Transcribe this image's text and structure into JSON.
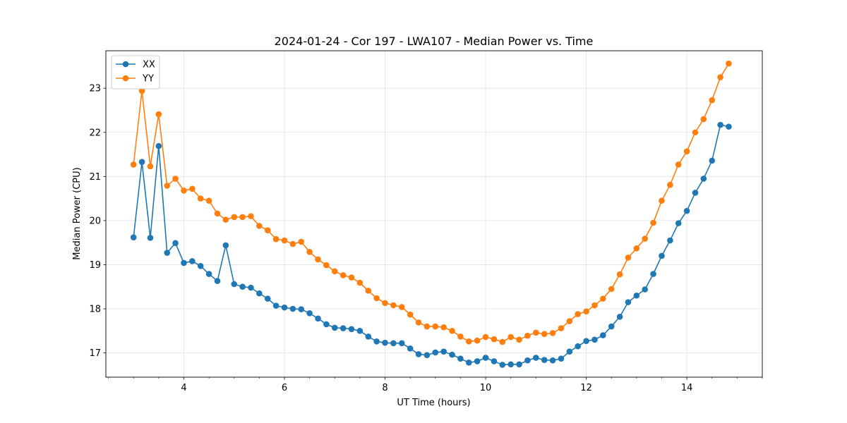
{
  "chart_data": {
    "type": "line",
    "title": "2024-01-24 - Cor 197 - LWA107 - Median Power vs. Time",
    "xlabel": "UT Time (hours)",
    "ylabel": "Median Power (CPU)",
    "xlim": [
      2.45,
      15.5
    ],
    "ylim": [
      16.45,
      23.85
    ],
    "xticks": [
      4,
      6,
      8,
      10,
      12,
      14
    ],
    "yticks": [
      17,
      18,
      19,
      20,
      21,
      22,
      23
    ],
    "grid": true,
    "legend_position": "top-left",
    "x": [
      3.0,
      3.167,
      3.333,
      3.5,
      3.667,
      3.833,
      4.0,
      4.167,
      4.333,
      4.5,
      4.667,
      4.833,
      5.0,
      5.167,
      5.333,
      5.5,
      5.667,
      5.833,
      6.0,
      6.167,
      6.333,
      6.5,
      6.667,
      6.833,
      7.0,
      7.167,
      7.333,
      7.5,
      7.667,
      7.833,
      8.0,
      8.167,
      8.333,
      8.5,
      8.667,
      8.833,
      9.0,
      9.167,
      9.333,
      9.5,
      9.667,
      9.833,
      10.0,
      10.167,
      10.333,
      10.5,
      10.667,
      10.833,
      11.0,
      11.167,
      11.333,
      11.5,
      11.667,
      11.833,
      12.0,
      12.167,
      12.333,
      12.5,
      12.667,
      12.833,
      13.0,
      13.167,
      13.333,
      13.5,
      13.667,
      13.833,
      14.0,
      14.167,
      14.333,
      14.5,
      14.667,
      14.833
    ],
    "series": [
      {
        "name": "XX",
        "color": "#1f77b4",
        "values": [
          19.62,
          21.33,
          19.61,
          21.69,
          19.27,
          19.49,
          19.04,
          19.08,
          18.97,
          18.79,
          18.63,
          19.44,
          18.56,
          18.5,
          18.48,
          18.35,
          18.23,
          18.07,
          18.03,
          18.0,
          17.99,
          17.9,
          17.78,
          17.65,
          17.57,
          17.56,
          17.54,
          17.5,
          17.37,
          17.26,
          17.23,
          17.22,
          17.22,
          17.1,
          16.97,
          16.95,
          17.01,
          17.03,
          16.96,
          16.87,
          16.78,
          16.81,
          16.89,
          16.81,
          16.73,
          16.74,
          16.74,
          16.83,
          16.89,
          16.84,
          16.83,
          16.87,
          17.03,
          17.15,
          17.27,
          17.3,
          17.4,
          17.6,
          17.82,
          18.15,
          18.3,
          18.44,
          18.79,
          19.2,
          19.55,
          19.94,
          20.22,
          20.63,
          20.95,
          21.36,
          22.17,
          22.13
        ]
      },
      {
        "name": "YY",
        "color": "#ff7f0e",
        "values": [
          21.27,
          22.94,
          21.23,
          22.41,
          20.79,
          20.95,
          20.68,
          20.72,
          20.5,
          20.45,
          20.16,
          20.02,
          20.08,
          20.08,
          20.1,
          19.88,
          19.78,
          19.58,
          19.55,
          19.47,
          19.52,
          19.29,
          19.12,
          18.99,
          18.85,
          18.76,
          18.71,
          18.59,
          18.41,
          18.24,
          18.13,
          18.08,
          18.04,
          17.87,
          17.69,
          17.6,
          17.6,
          17.58,
          17.5,
          17.37,
          17.26,
          17.28,
          17.36,
          17.31,
          17.25,
          17.36,
          17.3,
          17.39,
          17.46,
          17.43,
          17.45,
          17.56,
          17.72,
          17.88,
          17.94,
          18.08,
          18.23,
          18.45,
          18.78,
          19.16,
          19.37,
          19.59,
          19.95,
          20.45,
          20.81,
          21.27,
          21.57,
          22.0,
          22.3,
          22.73,
          23.25,
          23.56
        ]
      }
    ]
  }
}
